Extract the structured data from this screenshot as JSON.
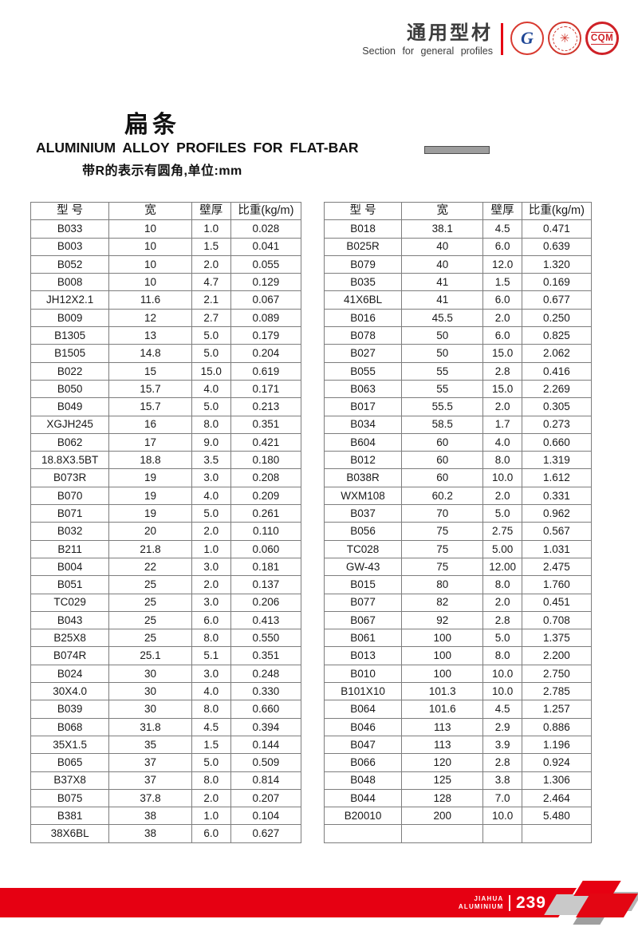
{
  "colors": {
    "accent_red": "#e60012",
    "table_border": "#7d7d7d",
    "bar_fill": "#9d9d9d",
    "bar_border": "#4e4e4e",
    "silver": "#c9c9c9"
  },
  "header": {
    "title_zh": "通用型材",
    "title_en": "Section for general profiles",
    "logos": [
      {
        "name": "gb-logo",
        "glyph": "G"
      },
      {
        "name": "certification-seal-logo",
        "glyph": "✳"
      },
      {
        "name": "cqm-logo",
        "glyph": "CQM"
      }
    ]
  },
  "title_block": {
    "heading_zh": "扁条",
    "heading_en": "ALUMINIUM ALLOY PROFILES FOR FLAT-BAR",
    "note": "带R的表示有圆角,单位:mm"
  },
  "tables": {
    "columns": [
      "型  号",
      "宽",
      "壁厚",
      "比重(kg/m)"
    ],
    "left_rows": [
      [
        "B033",
        "10",
        "1.0",
        "0.028"
      ],
      [
        "B003",
        "10",
        "1.5",
        "0.041"
      ],
      [
        "B052",
        "10",
        "2.0",
        "0.055"
      ],
      [
        "B008",
        "10",
        "4.7",
        "0.129"
      ],
      [
        "JH12X2.1",
        "11.6",
        "2.1",
        "0.067"
      ],
      [
        "B009",
        "12",
        "2.7",
        "0.089"
      ],
      [
        "B1305",
        "13",
        "5.0",
        "0.179"
      ],
      [
        "B1505",
        "14.8",
        "5.0",
        "0.204"
      ],
      [
        "B022",
        "15",
        "15.0",
        "0.619"
      ],
      [
        "B050",
        "15.7",
        "4.0",
        "0.171"
      ],
      [
        "B049",
        "15.7",
        "5.0",
        "0.213"
      ],
      [
        "XGJH245",
        "16",
        "8.0",
        "0.351"
      ],
      [
        "B062",
        "17",
        "9.0",
        "0.421"
      ],
      [
        "18.8X3.5BT",
        "18.8",
        "3.5",
        "0.180"
      ],
      [
        "B073R",
        "19",
        "3.0",
        "0.208"
      ],
      [
        "B070",
        "19",
        "4.0",
        "0.209"
      ],
      [
        "B071",
        "19",
        "5.0",
        "0.261"
      ],
      [
        "B032",
        "20",
        "2.0",
        "0.110"
      ],
      [
        "B211",
        "21.8",
        "1.0",
        "0.060"
      ],
      [
        "B004",
        "22",
        "3.0",
        "0.181"
      ],
      [
        "B051",
        "25",
        "2.0",
        "0.137"
      ],
      [
        "TC029",
        "25",
        "3.0",
        "0.206"
      ],
      [
        "B043",
        "25",
        "6.0",
        "0.413"
      ],
      [
        "B25X8",
        "25",
        "8.0",
        "0.550"
      ],
      [
        "B074R",
        "25.1",
        "5.1",
        "0.351"
      ],
      [
        "B024",
        "30",
        "3.0",
        "0.248"
      ],
      [
        "30X4.0",
        "30",
        "4.0",
        "0.330"
      ],
      [
        "B039",
        "30",
        "8.0",
        "0.660"
      ],
      [
        "B068",
        "31.8",
        "4.5",
        "0.394"
      ],
      [
        "35X1.5",
        "35",
        "1.5",
        "0.144"
      ],
      [
        "B065",
        "37",
        "5.0",
        "0.509"
      ],
      [
        "B37X8",
        "37",
        "8.0",
        "0.814"
      ],
      [
        "B075",
        "37.8",
        "2.0",
        "0.207"
      ],
      [
        "B381",
        "38",
        "1.0",
        "0.104"
      ],
      [
        "38X6BL",
        "38",
        "6.0",
        "0.627"
      ]
    ],
    "right_rows": [
      [
        "B018",
        "38.1",
        "4.5",
        "0.471"
      ],
      [
        "B025R",
        "40",
        "6.0",
        "0.639"
      ],
      [
        "B079",
        "40",
        "12.0",
        "1.320"
      ],
      [
        "B035",
        "41",
        "1.5",
        "0.169"
      ],
      [
        "41X6BL",
        "41",
        "6.0",
        "0.677"
      ],
      [
        "B016",
        "45.5",
        "2.0",
        "0.250"
      ],
      [
        "B078",
        "50",
        "6.0",
        "0.825"
      ],
      [
        "B027",
        "50",
        "15.0",
        "2.062"
      ],
      [
        "B055",
        "55",
        "2.8",
        "0.416"
      ],
      [
        "B063",
        "55",
        "15.0",
        "2.269"
      ],
      [
        "B017",
        "55.5",
        "2.0",
        "0.305"
      ],
      [
        "B034",
        "58.5",
        "1.7",
        "0.273"
      ],
      [
        "B604",
        "60",
        "4.0",
        "0.660"
      ],
      [
        "B012",
        "60",
        "8.0",
        "1.319"
      ],
      [
        "B038R",
        "60",
        "10.0",
        "1.612"
      ],
      [
        "WXM108",
        "60.2",
        "2.0",
        "0.331"
      ],
      [
        "B037",
        "70",
        "5.0",
        "0.962"
      ],
      [
        "B056",
        "75",
        "2.75",
        "0.567"
      ],
      [
        "TC028",
        "75",
        "5.00",
        "1.031"
      ],
      [
        "GW-43",
        "75",
        "12.00",
        "2.475"
      ],
      [
        "B015",
        "80",
        "8.0",
        "1.760"
      ],
      [
        "B077",
        "82",
        "2.0",
        "0.451"
      ],
      [
        "B067",
        "92",
        "2.8",
        "0.708"
      ],
      [
        "B061",
        "100",
        "5.0",
        "1.375"
      ],
      [
        "B013",
        "100",
        "8.0",
        "2.200"
      ],
      [
        "B010",
        "100",
        "10.0",
        "2.750"
      ],
      [
        "B101X10",
        "101.3",
        "10.0",
        "2.785"
      ],
      [
        "B064",
        "101.6",
        "4.5",
        "1.257"
      ],
      [
        "B046",
        "113",
        "2.9",
        "0.886"
      ],
      [
        "B047",
        "113",
        "3.9",
        "1.196"
      ],
      [
        "B066",
        "120",
        "2.8",
        "0.924"
      ],
      [
        "B048",
        "125",
        "3.8",
        "1.306"
      ],
      [
        "B044",
        "128",
        "7.0",
        "2.464"
      ],
      [
        "B20010",
        "200",
        "10.0",
        "5.480"
      ],
      [
        "",
        "",
        "",
        ""
      ]
    ]
  },
  "footer": {
    "brand_line1": "JIAHUA",
    "brand_line2": "ALUMINIUM",
    "page_number": "239"
  }
}
